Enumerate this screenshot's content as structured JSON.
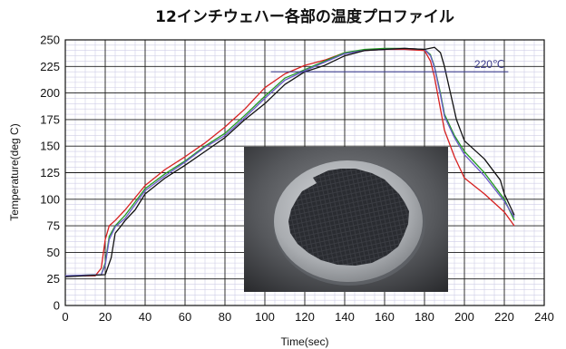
{
  "chart_data": {
    "type": "line",
    "title": "12インチウェハー各部の温度プロファイル",
    "xlabel": "Time(sec)",
    "ylabel": "Temperature(deg C)",
    "xlim": [
      0,
      240
    ],
    "ylim": [
      0,
      250
    ],
    "x_ticks": [
      "0",
      "20",
      "40",
      "60",
      "80",
      "100",
      "120",
      "140",
      "160",
      "180",
      "200",
      "220",
      "240"
    ],
    "y_ticks": [
      "0",
      "25",
      "50",
      "75",
      "100",
      "125",
      "150",
      "175",
      "200",
      "225",
      "250"
    ],
    "grid": true,
    "legend": "none",
    "reference_line": {
      "label": "220℃",
      "y": 220,
      "x_start": 103,
      "x_end": 222,
      "color": "#3c3c8c"
    },
    "inset_photo": "silicon-wafer-photo",
    "series": [
      {
        "color": "#d62020",
        "x": [
          0,
          15,
          18,
          20,
          22,
          25,
          30,
          40,
          50,
          60,
          70,
          80,
          90,
          100,
          110,
          120,
          130,
          140,
          150,
          160,
          170,
          180,
          183,
          185,
          188,
          190,
          195,
          200,
          210,
          220,
          225
        ],
        "y": [
          28,
          28,
          35,
          62,
          75,
          80,
          90,
          113,
          128,
          140,
          153,
          168,
          185,
          205,
          218,
          226,
          231,
          238,
          240,
          241,
          241,
          240,
          230,
          215,
          185,
          165,
          140,
          120,
          105,
          88,
          75
        ]
      },
      {
        "color": "#229922",
        "x": [
          0,
          18,
          20,
          22,
          25,
          30,
          40,
          50,
          60,
          70,
          80,
          90,
          100,
          110,
          120,
          130,
          140,
          150,
          160,
          170,
          180,
          183,
          185,
          188,
          190,
          195,
          200,
          210,
          220,
          225
        ],
        "y": [
          28,
          29,
          40,
          65,
          75,
          85,
          110,
          124,
          136,
          150,
          162,
          179,
          197,
          214,
          222,
          230,
          238,
          241,
          242,
          242,
          241,
          236,
          225,
          200,
          180,
          160,
          145,
          125,
          100,
          80
        ]
      },
      {
        "color": "#6a5ac8",
        "x": [
          0,
          18,
          20,
          22,
          25,
          30,
          40,
          50,
          60,
          70,
          80,
          90,
          100,
          110,
          120,
          130,
          140,
          150,
          160,
          170,
          180,
          183,
          185,
          188,
          190,
          195,
          200,
          210,
          220,
          225
        ],
        "y": [
          28,
          29,
          38,
          62,
          74,
          82,
          108,
          122,
          135,
          149,
          160,
          177,
          195,
          212,
          221,
          229,
          237,
          240,
          241,
          242,
          241,
          235,
          224,
          198,
          178,
          158,
          142,
          122,
          98,
          83
        ]
      },
      {
        "color": "#111111",
        "x": [
          0,
          20,
          23,
          25,
          28,
          30,
          35,
          40,
          50,
          60,
          70,
          80,
          90,
          100,
          110,
          120,
          130,
          140,
          150,
          160,
          170,
          180,
          185,
          188,
          190,
          193,
          196,
          200,
          210,
          218,
          220,
          225
        ],
        "y": [
          27,
          29,
          45,
          68,
          75,
          80,
          90,
          105,
          120,
          132,
          145,
          158,
          175,
          190,
          208,
          220,
          226,
          235,
          240,
          241,
          242,
          241,
          243,
          238,
          225,
          200,
          175,
          155,
          138,
          118,
          105,
          85
        ]
      }
    ]
  }
}
